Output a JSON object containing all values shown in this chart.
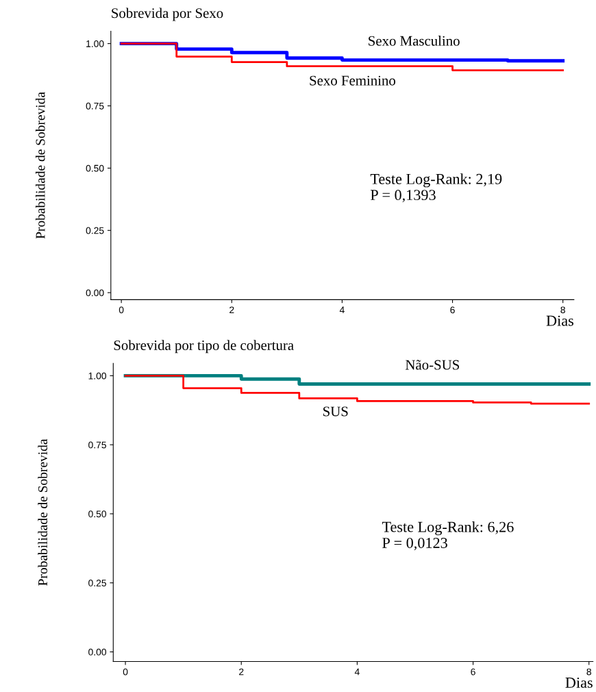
{
  "chart_data": [
    {
      "type": "step",
      "title": "Sobrevida por Sexo",
      "xlabel": "Dias",
      "ylabel": "Probabilidade de Sobrevida",
      "xlim": [
        -0.19,
        8.2
      ],
      "ylim": [
        -0.028,
        1.05
      ],
      "xticks": [
        0,
        2,
        4,
        6,
        8
      ],
      "yticks": [
        {
          "value": 0,
          "label": "0.00"
        },
        {
          "value": 0.25,
          "label": "0.25"
        },
        {
          "value": 0.5,
          "label": "0.50"
        },
        {
          "value": 0.75,
          "label": "0.75"
        },
        {
          "value": 1,
          "label": "1.00"
        }
      ],
      "series": [
        {
          "name": "Sexo Masculino",
          "color": "#0000ff",
          "x": [
            0,
            1,
            2,
            3,
            4,
            7,
            8
          ],
          "values": [
            1,
            0.978,
            0.964,
            0.942,
            0.934,
            0.931,
            0.931
          ]
        },
        {
          "name": "Sexo Feminino",
          "color": "#ff0000",
          "x": [
            0,
            1,
            2,
            3,
            6,
            8
          ],
          "values": [
            1,
            0.948,
            0.926,
            0.909,
            0.893,
            0.893
          ]
        }
      ],
      "annotations": [
        "Teste Log-Rank: 2,19\nP = 0,1393"
      ],
      "grid": false,
      "legend": false
    },
    {
      "type": "step",
      "title": "Sobrevida por tipo de cobertura",
      "xlabel": "Dias",
      "ylabel": "Probabilidade de Sobrevida",
      "xlim": [
        -0.21,
        8.07
      ],
      "ylim": [
        -0.035,
        1.045
      ],
      "xticks": [
        0,
        2,
        4,
        6,
        8
      ],
      "yticks": [
        {
          "value": 0,
          "label": "0.00"
        },
        {
          "value": 0.25,
          "label": "0.25"
        },
        {
          "value": 0.5,
          "label": "0.50"
        },
        {
          "value": 0.75,
          "label": "0.75"
        },
        {
          "value": 1,
          "label": "1.00"
        }
      ],
      "series": [
        {
          "name": "Não-SUS",
          "color": "#008080",
          "x": [
            0,
            2,
            3,
            8
          ],
          "values": [
            1,
            0.988,
            0.97,
            0.97
          ]
        },
        {
          "name": "SUS",
          "color": "#ff0000",
          "x": [
            0,
            1,
            2,
            3,
            4,
            6,
            7,
            8
          ],
          "values": [
            1,
            0.955,
            0.938,
            0.918,
            0.908,
            0.903,
            0.899,
            0.899
          ]
        }
      ],
      "annotations": [
        "Teste Log-Rank: 6,26\nP = 0,0123"
      ],
      "grid": false,
      "legend": false
    }
  ]
}
